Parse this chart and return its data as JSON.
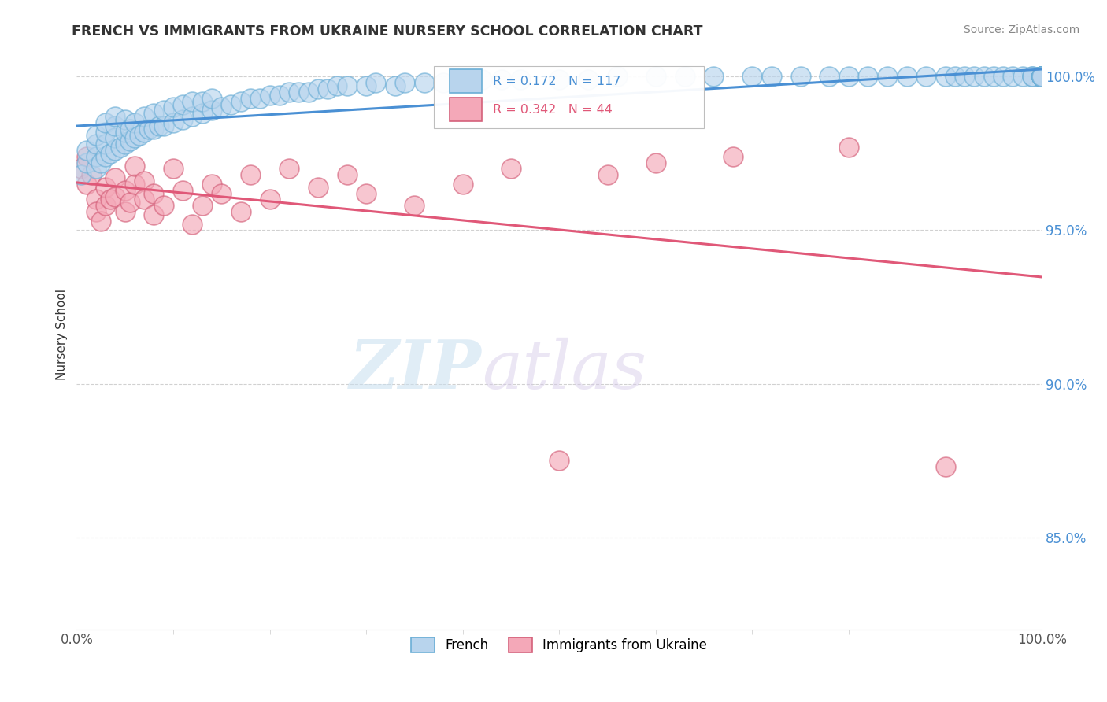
{
  "title": "FRENCH VS IMMIGRANTS FROM UKRAINE NURSERY SCHOOL CORRELATION CHART",
  "source": "Source: ZipAtlas.com",
  "ylabel": "Nursery School",
  "xlim": [
    0.0,
    1.0
  ],
  "ylim": [
    0.82,
    1.012
  ],
  "yticks": [
    0.85,
    0.9,
    0.95,
    1.0
  ],
  "ytick_labels": [
    "85.0%",
    "90.0%",
    "95.0%",
    "100.0%"
  ],
  "xtick_labels": [
    "0.0%",
    "100.0%"
  ],
  "french_R": 0.172,
  "french_N": 117,
  "ukraine_R": 0.342,
  "ukraine_N": 44,
  "french_color": "#b8d4ed",
  "ukraine_color": "#f4a8b8",
  "french_edge_color": "#6baed6",
  "ukraine_edge_color": "#d4607a",
  "french_line_color": "#4a90d4",
  "ukraine_line_color": "#e05878",
  "legend_french": "French",
  "legend_ukraine": "Immigrants from Ukraine",
  "watermark_zip": "ZIP",
  "watermark_atlas": "atlas",
  "french_x": [
    0.005,
    0.01,
    0.01,
    0.02,
    0.02,
    0.02,
    0.02,
    0.025,
    0.03,
    0.03,
    0.03,
    0.03,
    0.035,
    0.04,
    0.04,
    0.04,
    0.04,
    0.045,
    0.05,
    0.05,
    0.05,
    0.055,
    0.055,
    0.06,
    0.06,
    0.065,
    0.07,
    0.07,
    0.075,
    0.08,
    0.08,
    0.085,
    0.09,
    0.09,
    0.1,
    0.1,
    0.11,
    0.11,
    0.12,
    0.12,
    0.13,
    0.13,
    0.14,
    0.14,
    0.15,
    0.16,
    0.17,
    0.18,
    0.19,
    0.2,
    0.21,
    0.22,
    0.23,
    0.24,
    0.25,
    0.26,
    0.27,
    0.28,
    0.3,
    0.31,
    0.33,
    0.34,
    0.36,
    0.38,
    0.4,
    0.42,
    0.44,
    0.46,
    0.5,
    0.53,
    0.56,
    0.6,
    0.63,
    0.66,
    0.7,
    0.72,
    0.75,
    0.78,
    0.8,
    0.82,
    0.84,
    0.86,
    0.88,
    0.9,
    0.91,
    0.92,
    0.93,
    0.94,
    0.95,
    0.96,
    0.97,
    0.98,
    0.99,
    0.99,
    1.0,
    1.0,
    1.0,
    1.0,
    1.0,
    1.0,
    1.0,
    1.0,
    1.0,
    1.0,
    1.0,
    1.0,
    1.0,
    1.0,
    1.0,
    1.0,
    1.0,
    1.0,
    1.0,
    1.0,
    1.0,
    1.0,
    1.0
  ],
  "french_y": [
    0.968,
    0.972,
    0.976,
    0.97,
    0.974,
    0.978,
    0.981,
    0.972,
    0.974,
    0.978,
    0.982,
    0.985,
    0.975,
    0.976,
    0.98,
    0.984,
    0.987,
    0.977,
    0.978,
    0.982,
    0.986,
    0.979,
    0.983,
    0.98,
    0.985,
    0.981,
    0.982,
    0.987,
    0.983,
    0.983,
    0.988,
    0.984,
    0.984,
    0.989,
    0.985,
    0.99,
    0.986,
    0.991,
    0.987,
    0.992,
    0.988,
    0.992,
    0.989,
    0.993,
    0.99,
    0.991,
    0.992,
    0.993,
    0.993,
    0.994,
    0.994,
    0.995,
    0.995,
    0.995,
    0.996,
    0.996,
    0.997,
    0.997,
    0.997,
    0.998,
    0.997,
    0.998,
    0.998,
    0.998,
    0.998,
    0.999,
    0.999,
    0.999,
    0.999,
    0.999,
    1.0,
    1.0,
    1.0,
    1.0,
    1.0,
    1.0,
    1.0,
    1.0,
    1.0,
    1.0,
    1.0,
    1.0,
    1.0,
    1.0,
    1.0,
    1.0,
    1.0,
    1.0,
    1.0,
    1.0,
    1.0,
    1.0,
    1.0,
    1.0,
    1.0,
    1.0,
    1.0,
    1.0,
    1.0,
    1.0,
    1.0,
    1.0,
    1.0,
    1.0,
    1.0,
    1.0,
    1.0,
    1.0,
    1.0,
    1.0,
    1.0,
    1.0,
    1.0,
    1.0,
    1.0,
    1.0,
    1.0
  ],
  "ukraine_x": [
    0.005,
    0.01,
    0.01,
    0.015,
    0.02,
    0.02,
    0.025,
    0.03,
    0.03,
    0.035,
    0.04,
    0.04,
    0.05,
    0.05,
    0.055,
    0.06,
    0.06,
    0.07,
    0.07,
    0.08,
    0.08,
    0.09,
    0.1,
    0.11,
    0.12,
    0.13,
    0.14,
    0.15,
    0.17,
    0.18,
    0.2,
    0.22,
    0.25,
    0.28,
    0.3,
    0.35,
    0.4,
    0.45,
    0.5,
    0.55,
    0.6,
    0.68,
    0.8,
    0.9
  ],
  "ukraine_y": [
    0.97,
    0.974,
    0.965,
    0.968,
    0.96,
    0.956,
    0.953,
    0.958,
    0.964,
    0.96,
    0.967,
    0.961,
    0.956,
    0.963,
    0.959,
    0.965,
    0.971,
    0.966,
    0.96,
    0.955,
    0.962,
    0.958,
    0.97,
    0.963,
    0.952,
    0.958,
    0.965,
    0.962,
    0.956,
    0.968,
    0.96,
    0.97,
    0.964,
    0.968,
    0.962,
    0.958,
    0.965,
    0.97,
    0.875,
    0.968,
    0.972,
    0.974,
    0.977,
    0.873
  ]
}
